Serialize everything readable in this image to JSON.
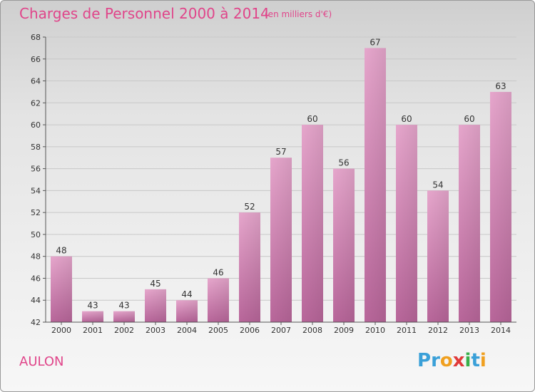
{
  "header": {
    "title": "Charges de Personnel 2000 à 2014",
    "subtitle": "(en milliers d'€)"
  },
  "footer": {
    "commune": "AULON",
    "logo_letters": [
      {
        "char": "P",
        "color": "#3aa0d8"
      },
      {
        "char": "r",
        "color": "#3aa0d8"
      },
      {
        "char": "o",
        "color": "#f0a020"
      },
      {
        "char": "x",
        "color": "#e03a3a"
      },
      {
        "char": "i",
        "color": "#3ab04a"
      },
      {
        "char": "t",
        "color": "#3aa0d8"
      },
      {
        "char": "i",
        "color": "#f0a020"
      }
    ]
  },
  "chart_data": {
    "type": "bar",
    "categories": [
      "2000",
      "2001",
      "2002",
      "2003",
      "2004",
      "2005",
      "2006",
      "2007",
      "2008",
      "2009",
      "2010",
      "2011",
      "2012",
      "2013",
      "2014"
    ],
    "values": [
      48,
      43,
      43,
      45,
      44,
      46,
      52,
      57,
      60,
      56,
      67,
      60,
      54,
      60,
      63
    ],
    "ylim": [
      42,
      68
    ],
    "yticks": [
      42,
      44,
      46,
      48,
      50,
      52,
      54,
      56,
      58,
      60,
      62,
      64,
      66,
      68
    ],
    "grid": true,
    "bar_color": "#d98ab7"
  }
}
